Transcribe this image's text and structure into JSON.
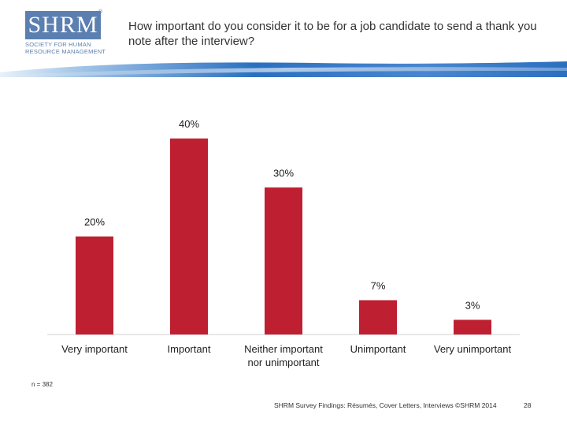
{
  "logo": {
    "wordmark": "SHRM",
    "registered": "®",
    "subtitle_line1": "Society for Human",
    "subtitle_line2": "Resource Management"
  },
  "title": "How important do you consider it to be for a job candidate to send a thank you note after the interview?",
  "colors": {
    "bar": "#be2032",
    "banner_blue": "#2a6fc0",
    "banner_light": "#9ec2e6",
    "logo_blue": "#5b7fb0"
  },
  "chart_data": {
    "type": "bar",
    "title": "",
    "categories": [
      [
        "Very important"
      ],
      [
        "Important"
      ],
      [
        "Neither important",
        "nor unimportant"
      ],
      [
        "Unimportant"
      ],
      [
        "Very unimportant"
      ]
    ],
    "values": [
      20,
      40,
      30,
      7,
      3
    ],
    "data_labels": [
      "20%",
      "40%",
      "30%",
      "7%",
      "3%"
    ],
    "xlabel": "",
    "ylabel": "",
    "ylim": [
      0,
      40
    ],
    "grid": false,
    "legend": "none"
  },
  "note": "n = 382",
  "footer": "SHRM Survey Findings: Résumés, Cover Letters, Interviews ©SHRM 2014",
  "page_number": "28"
}
